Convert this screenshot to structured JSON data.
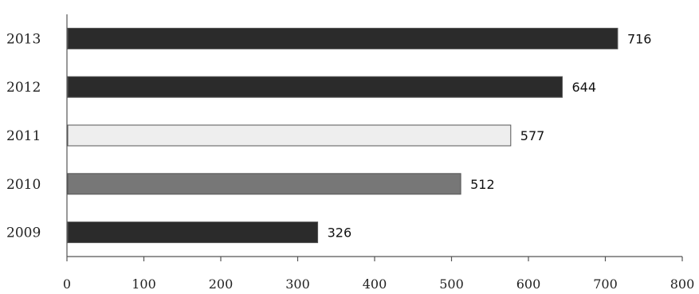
{
  "chart_data": {
    "type": "bar",
    "orientation": "horizontal",
    "categories": [
      "2013",
      "2012",
      "2011",
      "2010",
      "2009"
    ],
    "values": [
      716,
      644,
      577,
      512,
      326
    ],
    "bar_colors": [
      "#2b2b2b",
      "#2b2b2b",
      "#eeeeee",
      "#777777",
      "#2b2b2b"
    ],
    "xlim": [
      0,
      800
    ],
    "x_ticks": [
      0,
      100,
      200,
      300,
      400,
      500,
      600,
      700,
      800
    ],
    "grid": false,
    "legend": "none"
  }
}
